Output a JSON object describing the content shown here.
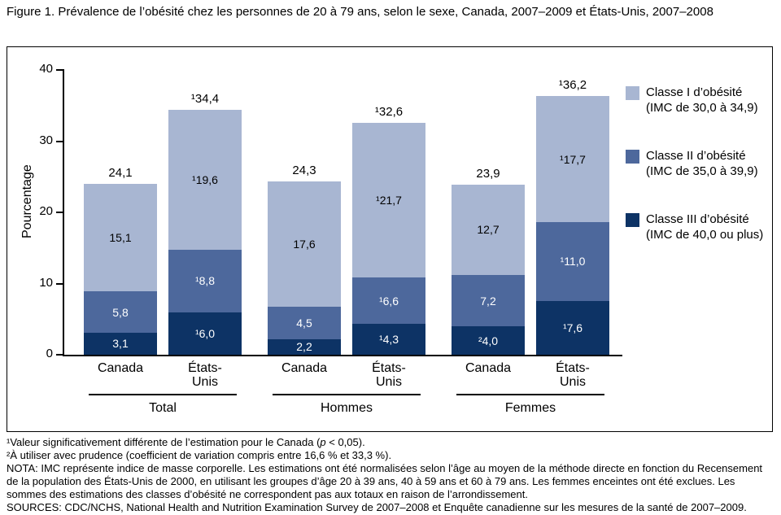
{
  "title": "Figure 1. Prévalence de l’obésité chez les personnes de 20 à 79 ans, selon le sexe, Canada, 2007–2009 et États-Unis, 2007–2008",
  "chart_data": {
    "type": "bar",
    "stacked": true,
    "title": "Figure 1. Prévalence de l’obésité chez les personnes de 20 à 79 ans, selon le sexe, Canada, 2007–2009 et États-Unis, 2007–2008",
    "ylabel": "Pourcentage",
    "xlabel": "",
    "ylim": [
      0,
      40
    ],
    "yticks": [
      "0",
      "10",
      "20",
      "30",
      "40"
    ],
    "grid": false,
    "legend_position": "right",
    "stack_order": [
      "c3",
      "c2",
      "c1"
    ],
    "series_legend": [
      {
        "id": "c1",
        "label": "Classe I d’obésité",
        "sublabel": "(IMC de 30,0 à 34,9)",
        "color": "#a8b6d2",
        "label_color": "#000000"
      },
      {
        "id": "c2",
        "label": "Classe II d’obésité",
        "sublabel": "(IMC de 35,0 à 39,9)",
        "color": "#4d689c",
        "label_color": "#ffffff"
      },
      {
        "id": "c3",
        "label": "Classe III d’obésité",
        "sublabel": "(IMC de 40,0 ou plus)",
        "color": "#0d3365",
        "label_color": "#ffffff"
      }
    ],
    "groups": [
      {
        "label": "Total",
        "bars": [
          {
            "label": "Canada",
            "total": 24.1,
            "total_label": "24,1",
            "values": {
              "c3": 3.1,
              "c2": 5.8,
              "c1": 15.1
            },
            "value_labels": {
              "c3": "3,1",
              "c2": "5,8",
              "c1": "15,1"
            }
          },
          {
            "label": "États-Unis",
            "total": 34.4,
            "total_label": "¹34,4",
            "values": {
              "c3": 6.0,
              "c2": 8.8,
              "c1": 19.6
            },
            "value_labels": {
              "c3": "¹6,0",
              "c2": "¹8,8",
              "c1": "¹19,6"
            }
          }
        ]
      },
      {
        "label": "Hommes",
        "bars": [
          {
            "label": "Canada",
            "total": 24.3,
            "total_label": "24,3",
            "values": {
              "c3": 2.2,
              "c2": 4.5,
              "c1": 17.6
            },
            "value_labels": {
              "c3": "2,2",
              "c2": "4,5",
              "c1": "17,6"
            }
          },
          {
            "label": "États-Unis",
            "total": 32.6,
            "total_label": "¹32,6",
            "values": {
              "c3": 4.3,
              "c2": 6.6,
              "c1": 21.7
            },
            "value_labels": {
              "c3": "¹4,3",
              "c2": "¹6,6",
              "c1": "¹21,7"
            }
          }
        ]
      },
      {
        "label": "Femmes",
        "bars": [
          {
            "label": "Canada",
            "total": 23.9,
            "total_label": "23,9",
            "values": {
              "c3": 4.0,
              "c2": 7.2,
              "c1": 12.7
            },
            "value_labels": {
              "c3": "²4,0",
              "c2": "7,2",
              "c1": "12,7"
            }
          },
          {
            "label": "États-Unis",
            "total": 36.2,
            "total_label": "¹36,2",
            "values": {
              "c3": 7.6,
              "c2": 11.0,
              "c1": 17.7
            },
            "value_labels": {
              "c3": "¹7,6",
              "c2": "¹11,0",
              "c1": "¹17,7"
            }
          }
        ]
      }
    ]
  },
  "footnotes": {
    "note1_pre": "¹Valeur significativement différente de l’estimation pour le Canada (",
    "note1_italic": "p",
    "note1_post": " < 0,05).",
    "note2": "²À utiliser avec prudence (coefficient de variation compris entre 16,6 % et 33,3 %).",
    "nota": "NOTA: IMC représente indice de masse corporelle. Les estimations ont été normalisées selon l’âge au moyen de la méthode directe en fonction du Recensement de la population des États-Unis de 2000, en utilisant les groupes d’âge 20 à 39 ans, 40 à 59 ans et 60 à 79 ans. Les femmes enceintes ont été exclues. Les sommes des estimations des classes d’obésité ne correspondent pas aux totaux en raison de l’arrondissement.",
    "sources": "SOURCES: CDC/NCHS, National Health and Nutrition Examination Survey de 2007–2008 et Enquête canadienne sur les mesures de la santé de 2007–2009."
  }
}
